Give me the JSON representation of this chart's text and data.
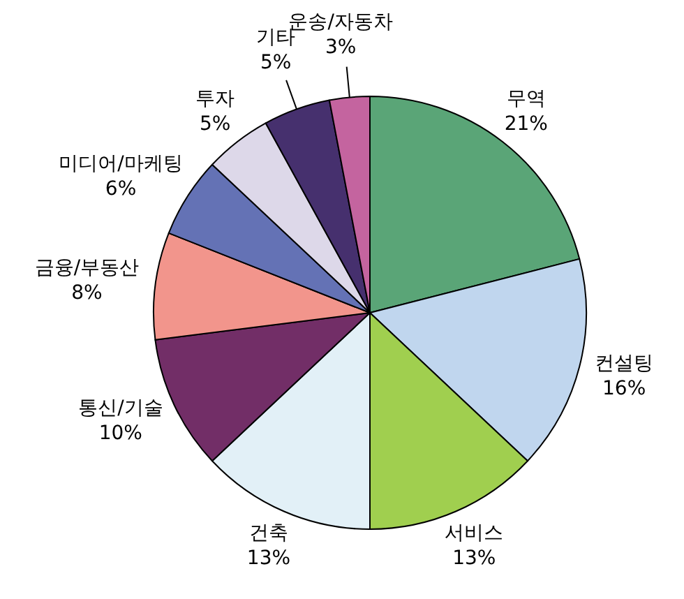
{
  "chart_data": {
    "type": "pie",
    "categories": [
      "무역",
      "컨설팅",
      "서비스",
      "건축",
      "통신/기술",
      "금융/부동산",
      "미디어/마케팅",
      "투자",
      "기타",
      "운송/자동차"
    ],
    "values": [
      21,
      16,
      13,
      13,
      10,
      8,
      6,
      5,
      5,
      3
    ],
    "value_labels": [
      "21%",
      "16%",
      "13%",
      "13%",
      "10%",
      "8%",
      "6%",
      "5%",
      "5%",
      "3%"
    ],
    "colors": [
      "#5aa577",
      "#c0d6ee",
      "#a0cf4f",
      "#e2f0f7",
      "#722e67",
      "#f2958c",
      "#6472b5",
      "#ddd8e9",
      "#46306e",
      "#c4649f"
    ]
  }
}
